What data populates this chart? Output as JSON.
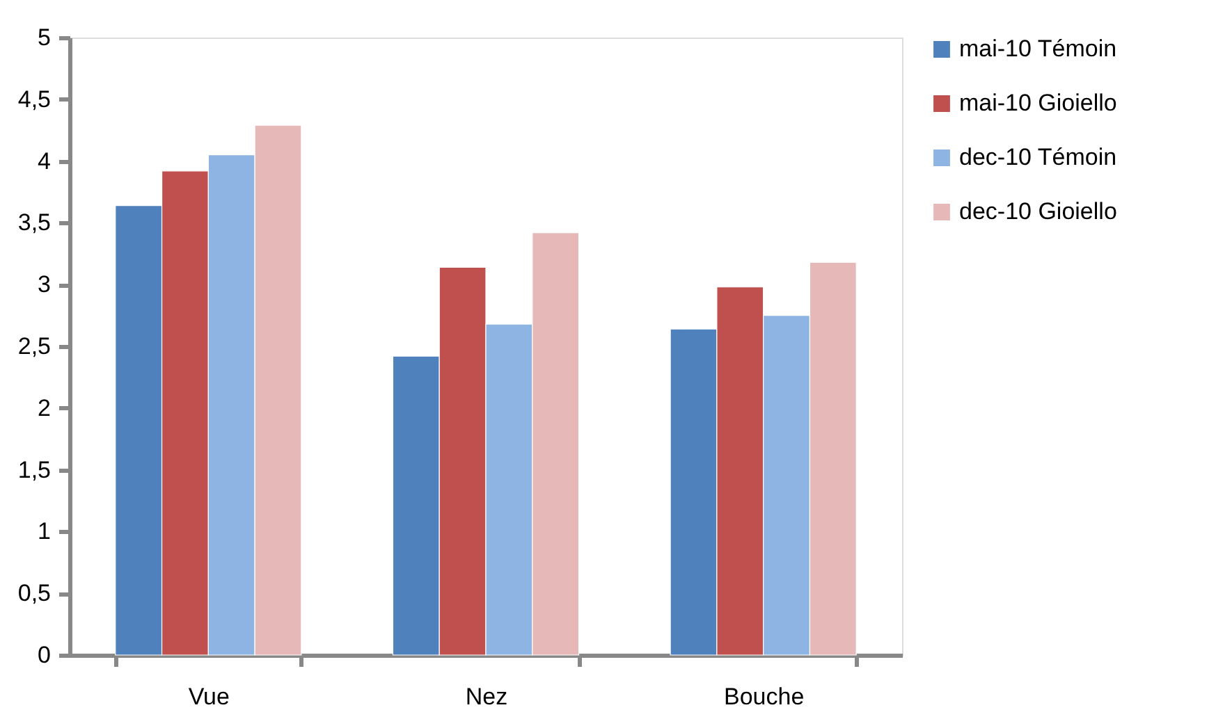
{
  "chart_data": {
    "type": "bar",
    "categories": [
      "Vue",
      "Nez",
      "Bouche"
    ],
    "series": [
      {
        "name": "mai-10 Témoin",
        "color": "#4f81bd",
        "values": [
          3.64,
          2.42,
          2.64
        ]
      },
      {
        "name": "mai-10 Gioiello",
        "color": "#c0504d",
        "values": [
          3.92,
          3.14,
          2.98
        ]
      },
      {
        "name": "dec-10 Témoin",
        "color": "#8eb4e3",
        "values": [
          4.05,
          2.68,
          2.75
        ]
      },
      {
        "name": "dec-10 Gioiello",
        "color": "#e6b9b8",
        "values": [
          4.29,
          3.42,
          3.18
        ]
      }
    ],
    "ylim": [
      0,
      5
    ],
    "yticks": [
      0,
      {
        "value": 0.5,
        "label": "0,5"
      },
      1,
      {
        "value": 1.5,
        "label": "1,5"
      },
      2,
      {
        "value": 2.5,
        "label": "2,5"
      },
      3,
      {
        "value": 3.5,
        "label": "3,5"
      },
      4,
      {
        "value": 4.5,
        "label": "4,5"
      },
      5
    ],
    "grid": false,
    "legend": "right"
  }
}
